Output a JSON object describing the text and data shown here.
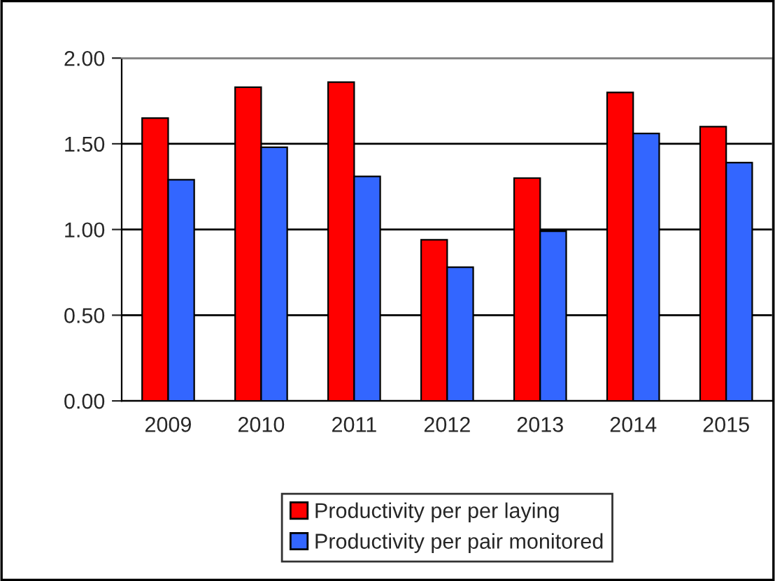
{
  "chart_data": {
    "type": "bar",
    "categories": [
      "2009",
      "2010",
      "2011",
      "2012",
      "2013",
      "2014",
      "2015"
    ],
    "series": [
      {
        "name": "Productivity per per laying",
        "color": "#ff0000",
        "values": [
          1.65,
          1.83,
          1.86,
          0.94,
          1.3,
          1.8,
          1.6
        ]
      },
      {
        "name": "Productivity per pair monitored",
        "color": "#3366ff",
        "values": [
          1.29,
          1.48,
          1.31,
          0.78,
          0.99,
          1.56,
          1.39
        ]
      }
    ],
    "ylim": [
      0,
      2
    ],
    "yticks": [
      {
        "value": 0,
        "label": "0.00"
      },
      {
        "value": 0.5,
        "label": "0.50"
      },
      {
        "value": 1,
        "label": "1.00"
      },
      {
        "value": 1.5,
        "label": "1.50"
      },
      {
        "value": 2,
        "label": "2.00"
      }
    ],
    "grid": "y",
    "legend": "bottom"
  }
}
